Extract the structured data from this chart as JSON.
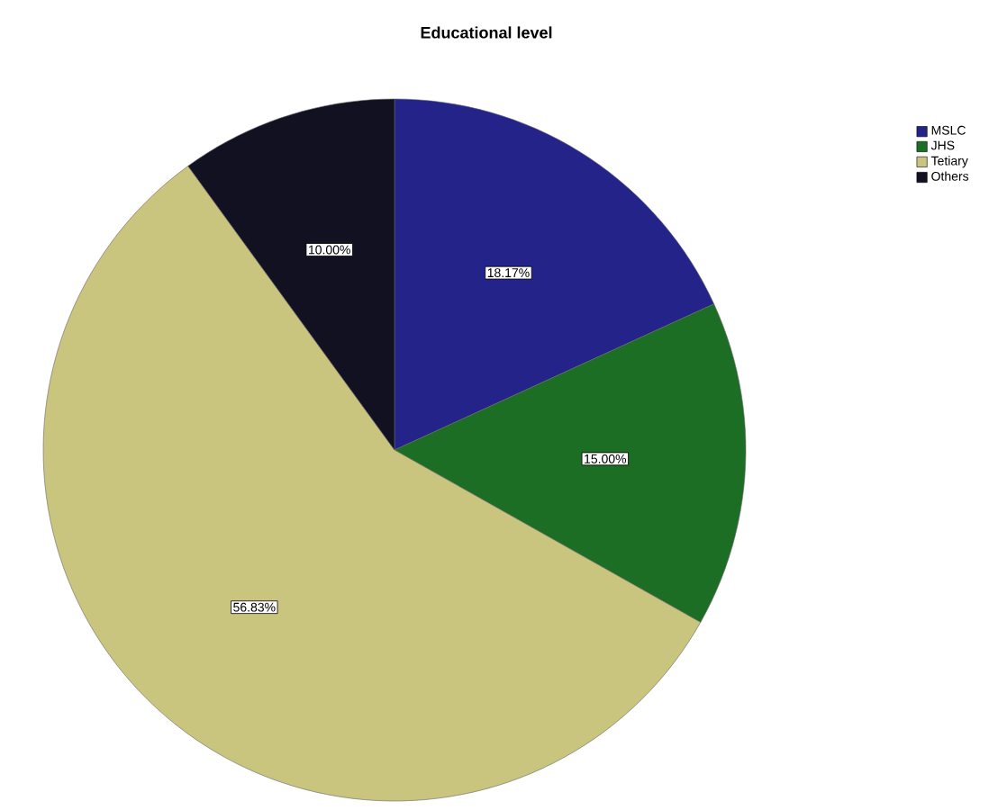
{
  "chart_data": {
    "type": "pie",
    "title": "Educational level",
    "categories": [
      "MSLC",
      "JHS",
      "Tetiary",
      "Others"
    ],
    "values": [
      18.17,
      15.0,
      56.83,
      10.0
    ],
    "value_labels": [
      "18.17%",
      "15.00%",
      "56.83%",
      "10.00%"
    ],
    "colors": [
      "#23238a",
      "#1d6e25",
      "#c9c57e",
      "#111122"
    ],
    "legend": "top right"
  }
}
